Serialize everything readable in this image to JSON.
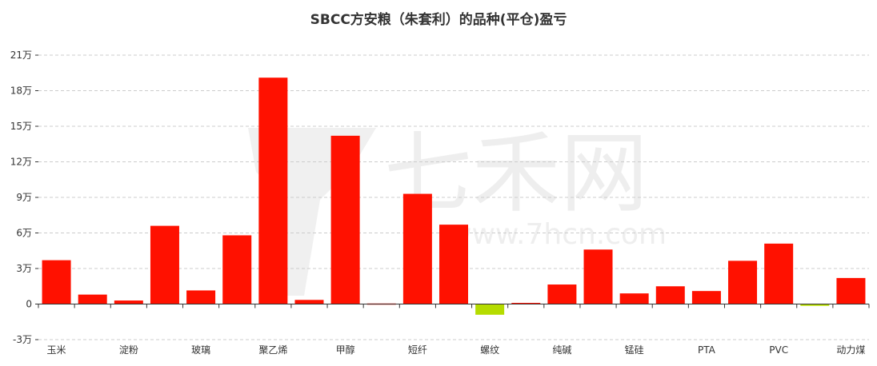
{
  "chart_data": {
    "type": "bar",
    "title": "SBCC方安粮（朱套利）的品种(平仓)盈亏",
    "categories": [
      "玉米",
      "",
      "淀粉",
      "",
      "玻璃",
      "",
      "聚乙烯",
      "",
      "甲醇",
      "",
      "短纤",
      "",
      "螺纹",
      "",
      "纯碱",
      "",
      "锰硅",
      "",
      "PTA",
      "",
      "PVC",
      "",
      "动力煤"
    ],
    "values": [
      37000,
      8000,
      3000,
      66000,
      11500,
      58000,
      191000,
      3500,
      142000,
      500,
      93000,
      67000,
      -9000,
      1000,
      16500,
      46000,
      9000,
      15000,
      11000,
      36500,
      51000,
      -1500,
      22000
    ],
    "positive_color": "#ff1100",
    "negative_color": "#b5dc00",
    "ylim": [
      -30000,
      210000
    ],
    "yticks": [
      {
        "value": -30000,
        "label": "-3万"
      },
      {
        "value": 0,
        "label": "0"
      },
      {
        "value": 30000,
        "label": "3万"
      },
      {
        "value": 60000,
        "label": "6万"
      },
      {
        "value": 90000,
        "label": "9万"
      },
      {
        "value": 120000,
        "label": "12万"
      },
      {
        "value": 150000,
        "label": "15万"
      },
      {
        "value": 180000,
        "label": "18万"
      },
      {
        "value": 210000,
        "label": "21万"
      }
    ],
    "grid": true,
    "xlabel": "",
    "ylabel": ""
  },
  "watermark": {
    "text": "七禾网",
    "url": "www.7hcn.com"
  }
}
